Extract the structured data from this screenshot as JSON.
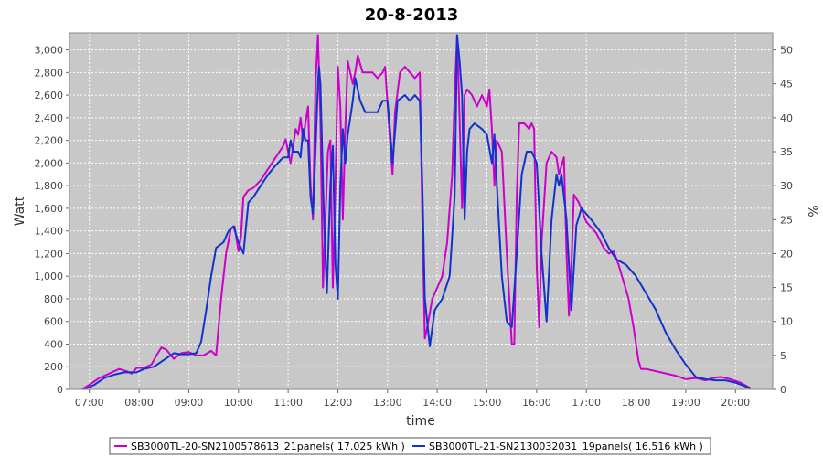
{
  "chart_data": {
    "type": "line",
    "title": "20-8-2013",
    "xlabel": "time",
    "ylabel": "Watt",
    "y2label": "%",
    "xlim": [
      6.6,
      20.75
    ],
    "ylim": [
      0,
      3150
    ],
    "y2lim": [
      0,
      52.5
    ],
    "xticks": [
      7,
      8,
      9,
      10,
      11,
      12,
      13,
      14,
      15,
      16,
      17,
      18,
      19,
      20
    ],
    "xtick_labels": [
      "07:00",
      "08:00",
      "09:00",
      "10:00",
      "11:00",
      "12:00",
      "13:00",
      "14:00",
      "15:00",
      "16:00",
      "17:00",
      "18:00",
      "19:00",
      "20:00"
    ],
    "yticks": [
      0,
      200,
      400,
      600,
      800,
      1000,
      1200,
      1400,
      1600,
      1800,
      2000,
      2200,
      2400,
      2600,
      2800,
      3000
    ],
    "ytick_labels": [
      "0",
      "200",
      "400",
      "600",
      "800",
      "1,000",
      "1,200",
      "1,400",
      "1,600",
      "1,800",
      "2,000",
      "2,200",
      "2,400",
      "2,600",
      "2,800",
      "3,000"
    ],
    "y2ticks": [
      0,
      5,
      10,
      15,
      20,
      25,
      30,
      35,
      40,
      45,
      50
    ],
    "y2tick_labels": [
      "0",
      "5",
      "10",
      "15",
      "20",
      "25",
      "30",
      "35",
      "40",
      "45",
      "50"
    ],
    "grid": true,
    "legend_position": "bottom",
    "plot_background": "#c8c8c8",
    "series": [
      {
        "name": "SB3000TL-20-SN2100578613_21panels( 17.025 kWh )",
        "color": "#cc00cc",
        "points": [
          [
            6.85,
            0
          ],
          [
            7.0,
            40
          ],
          [
            7.2,
            100
          ],
          [
            7.4,
            140
          ],
          [
            7.6,
            180
          ],
          [
            7.75,
            160
          ],
          [
            7.85,
            140
          ],
          [
            7.95,
            190
          ],
          [
            8.1,
            190
          ],
          [
            8.25,
            220
          ],
          [
            8.35,
            300
          ],
          [
            8.45,
            370
          ],
          [
            8.55,
            350
          ],
          [
            8.7,
            270
          ],
          [
            8.85,
            320
          ],
          [
            9.0,
            330
          ],
          [
            9.15,
            300
          ],
          [
            9.3,
            300
          ],
          [
            9.45,
            340
          ],
          [
            9.55,
            300
          ],
          [
            9.65,
            800
          ],
          [
            9.75,
            1200
          ],
          [
            9.85,
            1420
          ],
          [
            9.92,
            1440
          ],
          [
            10.0,
            1220
          ],
          [
            10.05,
            1350
          ],
          [
            10.1,
            1700
          ],
          [
            10.2,
            1760
          ],
          [
            10.3,
            1780
          ],
          [
            10.45,
            1850
          ],
          [
            10.6,
            1950
          ],
          [
            10.75,
            2050
          ],
          [
            10.9,
            2150
          ],
          [
            10.95,
            2210
          ],
          [
            11.0,
            2100
          ],
          [
            11.05,
            2000
          ],
          [
            11.1,
            2150
          ],
          [
            11.15,
            2300
          ],
          [
            11.2,
            2250
          ],
          [
            11.25,
            2400
          ],
          [
            11.3,
            2200
          ],
          [
            11.35,
            2360
          ],
          [
            11.4,
            2500
          ],
          [
            11.45,
            1800
          ],
          [
            11.5,
            1500
          ],
          [
            11.55,
            2700
          ],
          [
            11.6,
            3130
          ],
          [
            11.65,
            2400
          ],
          [
            11.7,
            900
          ],
          [
            11.75,
            1500
          ],
          [
            11.8,
            2100
          ],
          [
            11.85,
            2200
          ],
          [
            11.9,
            900
          ],
          [
            11.95,
            1800
          ],
          [
            12.0,
            2850
          ],
          [
            12.05,
            2500
          ],
          [
            12.1,
            1500
          ],
          [
            12.15,
            2300
          ],
          [
            12.2,
            2900
          ],
          [
            12.3,
            2700
          ],
          [
            12.35,
            2800
          ],
          [
            12.4,
            2950
          ],
          [
            12.5,
            2800
          ],
          [
            12.7,
            2800
          ],
          [
            12.8,
            2750
          ],
          [
            12.9,
            2800
          ],
          [
            12.95,
            2850
          ],
          [
            13.05,
            2200
          ],
          [
            13.1,
            1900
          ],
          [
            13.15,
            2450
          ],
          [
            13.25,
            2800
          ],
          [
            13.35,
            2850
          ],
          [
            13.45,
            2800
          ],
          [
            13.55,
            2750
          ],
          [
            13.65,
            2800
          ],
          [
            13.7,
            1500
          ],
          [
            13.75,
            450
          ],
          [
            13.8,
            550
          ],
          [
            13.9,
            800
          ],
          [
            14.0,
            900
          ],
          [
            14.1,
            1000
          ],
          [
            14.2,
            1300
          ],
          [
            14.3,
            1900
          ],
          [
            14.35,
            2600
          ],
          [
            14.4,
            3130
          ],
          [
            14.45,
            2400
          ],
          [
            14.5,
            1600
          ],
          [
            14.55,
            2600
          ],
          [
            14.6,
            2650
          ],
          [
            14.7,
            2600
          ],
          [
            14.8,
            2500
          ],
          [
            14.9,
            2600
          ],
          [
            15.0,
            2500
          ],
          [
            15.05,
            2650
          ],
          [
            15.1,
            2300
          ],
          [
            15.15,
            1800
          ],
          [
            15.2,
            2200
          ],
          [
            15.3,
            2100
          ],
          [
            15.4,
            1200
          ],
          [
            15.5,
            400
          ],
          [
            15.55,
            400
          ],
          [
            15.6,
            1700
          ],
          [
            15.65,
            2350
          ],
          [
            15.75,
            2350
          ],
          [
            15.85,
            2300
          ],
          [
            15.9,
            2350
          ],
          [
            15.95,
            2300
          ],
          [
            16.0,
            1100
          ],
          [
            16.05,
            550
          ],
          [
            16.1,
            1300
          ],
          [
            16.2,
            2000
          ],
          [
            16.3,
            2100
          ],
          [
            16.4,
            2050
          ],
          [
            16.45,
            1900
          ],
          [
            16.55,
            2050
          ],
          [
            16.6,
            1200
          ],
          [
            16.65,
            650
          ],
          [
            16.7,
            1100
          ],
          [
            16.75,
            1720
          ],
          [
            16.85,
            1650
          ],
          [
            17.0,
            1480
          ],
          [
            17.2,
            1380
          ],
          [
            17.35,
            1250
          ],
          [
            17.45,
            1200
          ],
          [
            17.55,
            1220
          ],
          [
            17.65,
            1100
          ],
          [
            17.75,
            950
          ],
          [
            17.85,
            800
          ],
          [
            17.95,
            550
          ],
          [
            18.05,
            250
          ],
          [
            18.1,
            180
          ],
          [
            18.2,
            180
          ],
          [
            18.5,
            150
          ],
          [
            18.8,
            120
          ],
          [
            19.0,
            90
          ],
          [
            19.2,
            100
          ],
          [
            19.4,
            80
          ],
          [
            19.55,
            100
          ],
          [
            19.7,
            110
          ],
          [
            19.9,
            90
          ],
          [
            20.1,
            60
          ],
          [
            20.3,
            10
          ]
        ]
      },
      {
        "name": "SB3000TL-21-SN2130032031_19panels( 16.516 kWh )",
        "color": "#1033cc",
        "points": [
          [
            6.9,
            0
          ],
          [
            7.1,
            40
          ],
          [
            7.3,
            100
          ],
          [
            7.5,
            130
          ],
          [
            7.7,
            150
          ],
          [
            7.8,
            150
          ],
          [
            7.95,
            150
          ],
          [
            8.1,
            180
          ],
          [
            8.3,
            200
          ],
          [
            8.5,
            260
          ],
          [
            8.7,
            320
          ],
          [
            8.85,
            310
          ],
          [
            9.0,
            310
          ],
          [
            9.15,
            320
          ],
          [
            9.25,
            420
          ],
          [
            9.35,
            700
          ],
          [
            9.45,
            1000
          ],
          [
            9.55,
            1250
          ],
          [
            9.7,
            1300
          ],
          [
            9.8,
            1400
          ],
          [
            9.9,
            1440
          ],
          [
            10.0,
            1300
          ],
          [
            10.1,
            1200
          ],
          [
            10.2,
            1650
          ],
          [
            10.3,
            1700
          ],
          [
            10.45,
            1800
          ],
          [
            10.6,
            1900
          ],
          [
            10.75,
            1980
          ],
          [
            10.9,
            2050
          ],
          [
            11.0,
            2050
          ],
          [
            11.05,
            2200
          ],
          [
            11.1,
            2100
          ],
          [
            11.2,
            2100
          ],
          [
            11.25,
            2050
          ],
          [
            11.3,
            2300
          ],
          [
            11.35,
            2200
          ],
          [
            11.4,
            2200
          ],
          [
            11.45,
            1700
          ],
          [
            11.5,
            1550
          ],
          [
            11.55,
            2100
          ],
          [
            11.6,
            2700
          ],
          [
            11.62,
            2850
          ],
          [
            11.65,
            2700
          ],
          [
            11.72,
            1500
          ],
          [
            11.78,
            850
          ],
          [
            11.85,
            1800
          ],
          [
            11.9,
            2150
          ],
          [
            11.95,
            1100
          ],
          [
            12.0,
            800
          ],
          [
            12.05,
            1800
          ],
          [
            12.1,
            2300
          ],
          [
            12.15,
            2000
          ],
          [
            12.2,
            2250
          ],
          [
            12.3,
            2550
          ],
          [
            12.35,
            2750
          ],
          [
            12.45,
            2550
          ],
          [
            12.55,
            2450
          ],
          [
            12.7,
            2450
          ],
          [
            12.8,
            2450
          ],
          [
            12.9,
            2550
          ],
          [
            13.0,
            2550
          ],
          [
            13.05,
            2300
          ],
          [
            13.1,
            2000
          ],
          [
            13.2,
            2550
          ],
          [
            13.35,
            2600
          ],
          [
            13.45,
            2550
          ],
          [
            13.55,
            2600
          ],
          [
            13.65,
            2550
          ],
          [
            13.7,
            1800
          ],
          [
            13.75,
            800
          ],
          [
            13.85,
            380
          ],
          [
            13.95,
            700
          ],
          [
            14.1,
            800
          ],
          [
            14.25,
            1000
          ],
          [
            14.35,
            1700
          ],
          [
            14.4,
            3130
          ],
          [
            14.45,
            2900
          ],
          [
            14.5,
            2600
          ],
          [
            14.55,
            1500
          ],
          [
            14.6,
            2100
          ],
          [
            14.65,
            2300
          ],
          [
            14.75,
            2350
          ],
          [
            14.9,
            2300
          ],
          [
            15.0,
            2250
          ],
          [
            15.1,
            2000
          ],
          [
            15.15,
            2250
          ],
          [
            15.2,
            1800
          ],
          [
            15.3,
            1000
          ],
          [
            15.4,
            600
          ],
          [
            15.5,
            550
          ],
          [
            15.6,
            1200
          ],
          [
            15.7,
            1900
          ],
          [
            15.8,
            2100
          ],
          [
            15.9,
            2100
          ],
          [
            16.0,
            2000
          ],
          [
            16.1,
            1200
          ],
          [
            16.2,
            600
          ],
          [
            16.3,
            1500
          ],
          [
            16.4,
            1900
          ],
          [
            16.45,
            1800
          ],
          [
            16.5,
            1900
          ],
          [
            16.6,
            1500
          ],
          [
            16.7,
            700
          ],
          [
            16.8,
            1450
          ],
          [
            16.9,
            1600
          ],
          [
            17.1,
            1500
          ],
          [
            17.3,
            1380
          ],
          [
            17.45,
            1250
          ],
          [
            17.6,
            1150
          ],
          [
            17.8,
            1100
          ],
          [
            18.0,
            1000
          ],
          [
            18.2,
            850
          ],
          [
            18.4,
            700
          ],
          [
            18.6,
            500
          ],
          [
            18.8,
            350
          ],
          [
            19.0,
            220
          ],
          [
            19.2,
            110
          ],
          [
            19.4,
            90
          ],
          [
            19.6,
            80
          ],
          [
            19.8,
            80
          ],
          [
            20.0,
            60
          ],
          [
            20.3,
            10
          ]
        ]
      }
    ]
  }
}
